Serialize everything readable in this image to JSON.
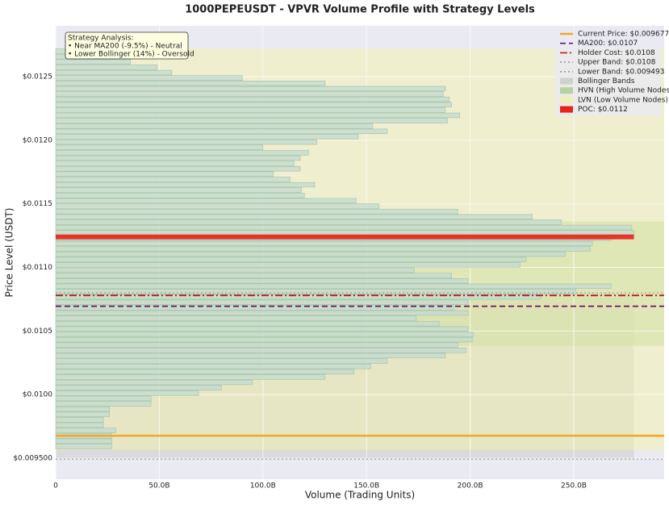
{
  "chart_data": {
    "type": "volume_profile",
    "title": "1000PEPEUSDT - VPVR Volume Profile with Strategy Levels",
    "x_label": "Volume (Trading Units)",
    "y_label": "Price Level (USDT)",
    "xlim": [
      0,
      293600000000
    ],
    "ylim": [
      0.009335,
      0.0129
    ],
    "xticks": [
      0,
      {
        "value": 50000000000,
        "label": "50.0B"
      },
      {
        "value": 100000000000,
        "label": "100.0B"
      },
      {
        "value": 150000000000,
        "label": "150.0B"
      },
      {
        "value": 200000000000,
        "label": "200.0B"
      },
      {
        "value": 250000000000,
        "label": "250.0B"
      }
    ],
    "yticks": [
      {
        "value": 0.0095,
        "label": "$0.009500"
      },
      {
        "value": 0.01,
        "label": "$0.0100"
      },
      {
        "value": 0.0105,
        "label": "$0.0105"
      },
      {
        "value": 0.011,
        "label": "$0.0110"
      },
      {
        "value": 0.0115,
        "label": "$0.0115"
      },
      {
        "value": 0.012,
        "label": "$0.0120"
      },
      {
        "value": 0.0125,
        "label": "$0.0125"
      }
    ],
    "grid": true,
    "bar_color": "#c5d9cf",
    "bar_edge": "#9cc3a8",
    "prices": [
      0.0127,
      0.012658,
      0.012616,
      0.012574,
      0.012532,
      0.01249,
      0.012448,
      0.012406,
      0.012364,
      0.012322,
      0.01228,
      0.012238,
      0.012196,
      0.012154,
      0.012112,
      0.01207,
      0.012028,
      0.011986,
      0.011944,
      0.011902,
      0.01186,
      0.011818,
      0.011776,
      0.011734,
      0.011692,
      0.01165,
      0.011608,
      0.011566,
      0.011524,
      0.011482,
      0.01144,
      0.011398,
      0.011356,
      0.011314,
      0.011272,
      0.01123,
      0.011188,
      0.011146,
      0.011104,
      0.011062,
      0.01102,
      0.010978,
      0.010936,
      0.010894,
      0.010852,
      0.01081,
      0.010768,
      0.010726,
      0.010684,
      0.010642,
      0.0106,
      0.010558,
      0.010516,
      0.010474,
      0.010432,
      0.01039,
      0.010348,
      0.010306,
      0.010264,
      0.010222,
      0.01018,
      0.010138,
      0.010096,
      0.010054,
      0.010012,
      0.00997,
      0.009928,
      0.009886,
      0.009844,
      0.009802,
      0.00976,
      0.009718,
      0.009676,
      0.009634,
      0.009592
    ],
    "values": [
      12000000000,
      28000000000,
      36000000000,
      49000000000,
      56000000000,
      90000000000,
      130000000000,
      188000000000,
      187000000000,
      190000000000,
      191000000000,
      188000000000,
      195000000000,
      189000000000,
      153000000000,
      160000000000,
      146000000000,
      126000000000,
      100000000000,
      122000000000,
      118000000000,
      115000000000,
      118000000000,
      105000000000,
      113000000000,
      125000000000,
      118500000000,
      120000000000,
      145000000000,
      156000000000,
      194000000000,
      230000000000,
      244000000000,
      278000000000,
      279000000000,
      268000000000,
      259000000000,
      258000000000,
      246000000000,
      227000000000,
      224000000000,
      173000000000,
      191000000000,
      199000000000,
      268000000000,
      251000000000,
      234000000000,
      199000000000,
      192000000000,
      199000000000,
      174000000000,
      185000000000,
      199000000000,
      201500000000,
      201000000000,
      194000000000,
      198000000000,
      188000000000,
      160000000000,
      152000000000,
      144000000000,
      130000000000,
      95000000000,
      80000000000,
      69000000000,
      46000000000,
      46000000000,
      26000000000,
      26000000000,
      23000000000,
      23000000000,
      29000000000,
      27000000000,
      27000000000,
      27000000000
    ],
    "levels": [
      {
        "name": "Current Price: $0.009677",
        "value": 0.009677,
        "color": "#f5a623",
        "style": "solid"
      },
      {
        "name": "MA200: $0.0107",
        "value": 0.010695,
        "color": "#6b0f6b",
        "style": "dashed"
      },
      {
        "name": "Holder Cost: $0.0108",
        "value": 0.01078,
        "color": "#b22222",
        "style": "dashdot"
      },
      {
        "name": "Upper Band: $0.0108",
        "value": 0.0108,
        "color": "#9a9a9a",
        "style": "dotted"
      },
      {
        "name": "Lower Band: $0.009493",
        "value": 0.009493,
        "color": "#9a9a9a",
        "style": "dotted"
      }
    ],
    "zones": [
      {
        "name": "Bollinger Bands",
        "color": "#c8c8c0",
        "opacity": 0.45
      },
      {
        "name": "HVN (High Volume Nodes)",
        "range": [
          0.011362,
          0.010383
        ],
        "color": "#a8cc8c",
        "opacity": 0.5
      },
      {
        "name": "LVN (Low Volume Nodes)",
        "range": [
          0.012722,
          0.009563
        ],
        "color": "#f2f0b0",
        "opacity": 0.55
      }
    ],
    "poc": {
      "name": "POC: $0.0112",
      "value": 0.01124,
      "color": "#e8231a"
    },
    "annotation": [
      "Strategy Analysis:",
      "• Near MA200 (-9.5%) - Neutral",
      "• Lower Bollinger (14%) - Oversold"
    ]
  }
}
